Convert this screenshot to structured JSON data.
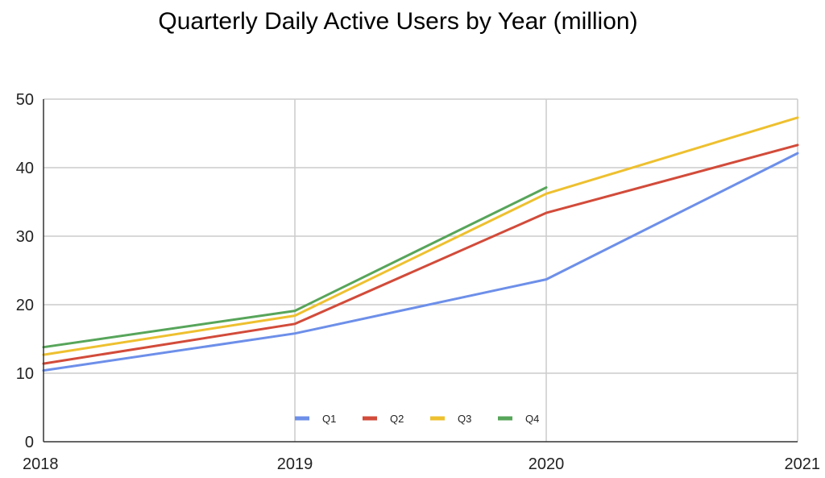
{
  "chart_data": {
    "type": "line",
    "title": "Quarterly Daily Active Users by Year (million)",
    "xlabel": "",
    "ylabel": "",
    "x": [
      "2018",
      "2019",
      "2020",
      "2021"
    ],
    "ylim": [
      0,
      50
    ],
    "yticks": [
      0,
      10,
      20,
      30,
      40,
      50
    ],
    "grid": true,
    "legend": "bottom-center",
    "series": [
      {
        "name": "Q1",
        "color": "#6d8fe9",
        "values": [
          10.4,
          15.8,
          23.7,
          42.1
        ]
      },
      {
        "name": "Q2",
        "color": "#d24b3a",
        "values": [
          11.4,
          17.2,
          33.4,
          43.3
        ]
      },
      {
        "name": "Q3",
        "color": "#eec02f",
        "values": [
          12.7,
          18.4,
          36.2,
          47.3
        ]
      },
      {
        "name": "Q4",
        "color": "#57a55a",
        "values": [
          13.8,
          19.1,
          37.1,
          null
        ]
      }
    ]
  }
}
